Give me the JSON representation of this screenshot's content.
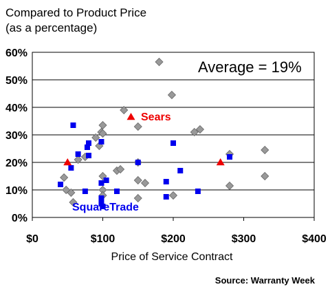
{
  "chart_data": {
    "type": "scatter",
    "title_lines": [
      "Compared to Product Price",
      "(as a percentage)"
    ],
    "xlabel": "Price of Service Contract",
    "source": "Source: Warranty Week",
    "xlim": [
      0,
      400
    ],
    "ylim": [
      0,
      60
    ],
    "x_ticks": [
      {
        "value": 0,
        "label": "$0"
      },
      {
        "value": 100,
        "label": "$100"
      },
      {
        "value": 200,
        "label": "$200"
      },
      {
        "value": 300,
        "label": "$300"
      },
      {
        "value": 400,
        "label": "$400"
      }
    ],
    "y_ticks": [
      {
        "value": 0,
        "label": "0%"
      },
      {
        "value": 10,
        "label": "10%"
      },
      {
        "value": 20,
        "label": "20%"
      },
      {
        "value": 30,
        "label": "30%"
      },
      {
        "value": 40,
        "label": "40%"
      },
      {
        "value": 50,
        "label": "50%"
      },
      {
        "value": 60,
        "label": "60%"
      }
    ],
    "grid": "horizontal",
    "average_annotation": "Average = 19%",
    "series": [
      {
        "marker": "diamond",
        "color": "#999999",
        "points": [
          [
            45,
            14.5
          ],
          [
            48,
            10
          ],
          [
            55,
            9
          ],
          [
            58,
            5.5
          ],
          [
            65,
            21
          ],
          [
            75,
            22
          ],
          [
            90,
            29
          ],
          [
            95,
            26
          ],
          [
            98,
            31
          ],
          [
            100,
            33.5
          ],
          [
            100,
            30.5
          ],
          [
            100,
            15
          ],
          [
            100,
            10
          ],
          [
            100,
            8
          ],
          [
            120,
            17
          ],
          [
            125,
            17.5
          ],
          [
            130,
            39
          ],
          [
            150,
            33
          ],
          [
            150,
            20
          ],
          [
            150,
            13.5
          ],
          [
            150,
            7
          ],
          [
            160,
            12.5
          ],
          [
            180,
            56.5
          ],
          [
            198,
            44.5
          ],
          [
            200,
            8
          ],
          [
            230,
            31
          ],
          [
            238,
            32
          ],
          [
            280,
            23
          ],
          [
            280,
            11.5
          ],
          [
            330,
            24.5
          ],
          [
            330,
            15
          ]
        ]
      },
      {
        "name": "SquareTrade",
        "marker": "square",
        "color": "#0000ee",
        "points": [
          [
            40,
            12
          ],
          [
            55,
            18
          ],
          [
            58,
            33.5
          ],
          [
            65,
            23
          ],
          [
            75,
            9.5
          ],
          [
            78,
            25.5
          ],
          [
            80,
            27
          ],
          [
            80,
            22.5
          ],
          [
            98,
            27.5
          ],
          [
            98,
            12.5
          ],
          [
            98,
            7
          ],
          [
            98,
            5
          ],
          [
            100,
            4
          ],
          [
            105,
            13.5
          ],
          [
            120,
            9.5
          ],
          [
            150,
            20
          ],
          [
            190,
            13
          ],
          [
            190,
            7.5
          ],
          [
            200,
            27
          ],
          [
            210,
            17
          ],
          [
            235,
            9.5
          ],
          [
            280,
            22
          ]
        ]
      },
      {
        "name": "Sears",
        "marker": "triangle",
        "color": "#ee0000",
        "points": [
          [
            50,
            20
          ],
          [
            140,
            36.5
          ],
          [
            267,
            20
          ]
        ]
      }
    ]
  }
}
